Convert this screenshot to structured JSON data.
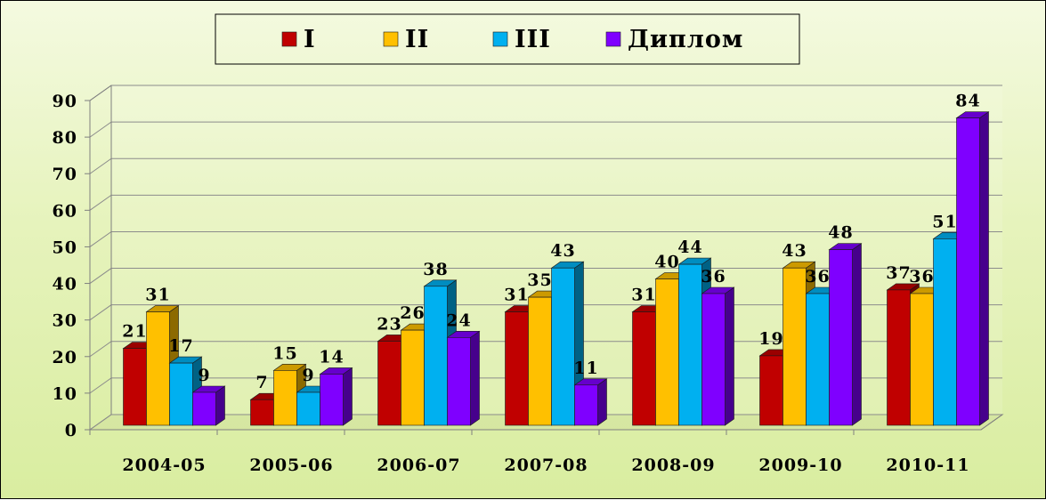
{
  "chart_data": {
    "type": "bar",
    "categories": [
      "2004-05",
      "2005-06",
      "2006-07",
      "2007-08",
      "2008-09",
      "2009-10",
      "2010-11"
    ],
    "series": [
      {
        "name": "I",
        "color": "#c00000",
        "values": [
          21,
          7,
          23,
          31,
          31,
          19,
          37
        ]
      },
      {
        "name": "II",
        "color": "#ffc000",
        "values": [
          31,
          15,
          26,
          35,
          40,
          43,
          36
        ]
      },
      {
        "name": "III",
        "color": "#00b0f0",
        "values": [
          17,
          9,
          38,
          43,
          44,
          36,
          51
        ]
      },
      {
        "name": "Диплом",
        "color": "#7f00ff",
        "values": [
          9,
          14,
          24,
          11,
          36,
          48,
          84
        ]
      }
    ],
    "ylim": [
      0,
      90
    ],
    "yticks": [
      0,
      10,
      20,
      30,
      40,
      50,
      60,
      70,
      80,
      90
    ],
    "gridlines": true,
    "legend_position": "top",
    "three_d": true
  }
}
